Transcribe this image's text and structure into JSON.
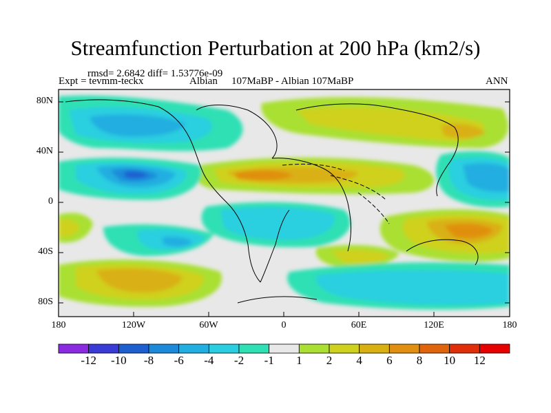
{
  "title": "Streamfunction Perturbation at 200 hPa (km2/s)",
  "stats": "rmsd= 2.6842 diff= 1.53776e-09",
  "expt": "Expt = tevmm-teckx",
  "period_left": "Albian",
  "period_right": "107MaBP - Albian     107MaBP",
  "season": "ANN",
  "lon_labels": [
    "180",
    "120W",
    "60W",
    "0",
    "60E",
    "120E",
    "180"
  ],
  "lat_labels": [
    "80N",
    "40N",
    "0",
    "40S",
    "80S"
  ],
  "colorbar": {
    "labels": [
      "-12",
      "-10",
      "-8",
      "-6",
      "-4",
      "-2",
      "-1",
      "1",
      "2",
      "4",
      "6",
      "8",
      "10",
      "12"
    ],
    "colors": [
      "#8a2be2",
      "#3a3ad6",
      "#1e5fd0",
      "#1c8ad9",
      "#21aee0",
      "#29cfe0",
      "#2ee0b4",
      "#e8e8e8",
      "#a9e031",
      "#cfd11f",
      "#d9b012",
      "#e08f10",
      "#e0640c",
      "#e02d0a",
      "#e60000"
    ]
  },
  "colors": {
    "background": "#ffffff",
    "neutral": "#e8e8e8",
    "coast": "#000000"
  }
}
